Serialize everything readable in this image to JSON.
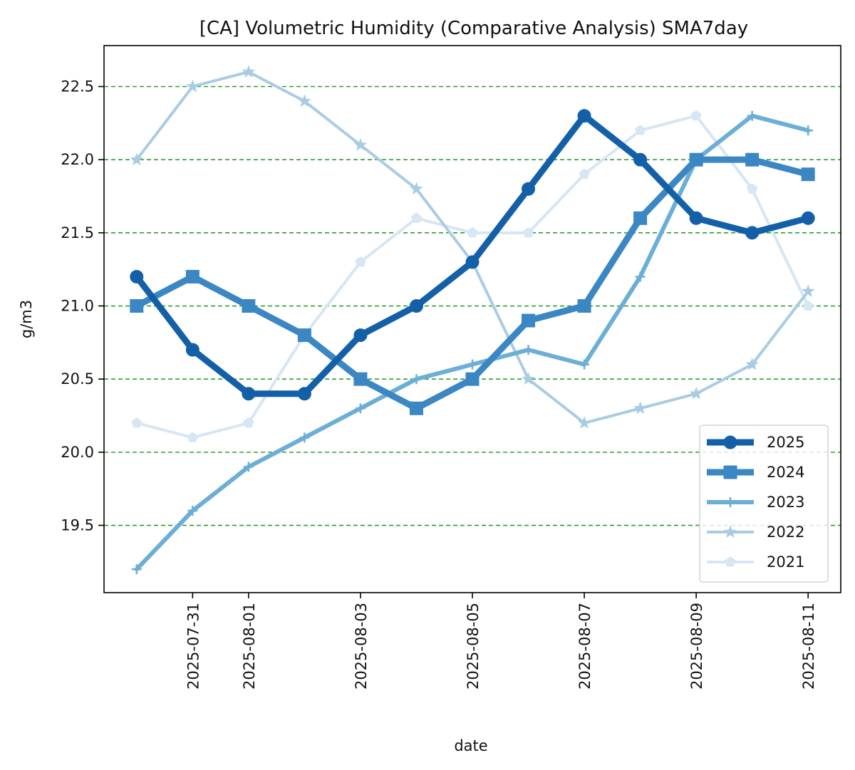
{
  "chart_data": {
    "type": "line",
    "title": "[CA] Volumetric Humidity (Comparative Analysis) SMA7day",
    "xlabel": "date",
    "ylabel": "g/m3",
    "x": [
      "2025-07-30",
      "2025-07-31",
      "2025-08-01",
      "2025-08-02",
      "2025-08-03",
      "2025-08-04",
      "2025-08-05",
      "2025-08-06",
      "2025-08-07",
      "2025-08-08",
      "2025-08-09",
      "2025-08-10",
      "2025-08-11"
    ],
    "x_ticks": [
      "2025-07-31",
      "2025-08-01",
      "2025-08-03",
      "2025-08-05",
      "2025-08-07",
      "2025-08-09",
      "2025-08-11"
    ],
    "y_ticks": [
      19.5,
      20.0,
      20.5,
      21.0,
      21.5,
      22.0,
      22.5
    ],
    "y_tick_labels": [
      "19.5",
      "20.0",
      "20.5",
      "21.0",
      "21.5",
      "22.0",
      "22.5"
    ],
    "ylim": [
      19.04,
      22.78
    ],
    "xlim": [
      "2025-07-29T10:00",
      "2025-08-11T14:00"
    ],
    "grid": {
      "axis": "y",
      "style": "dashed",
      "color": "#2ca02c"
    },
    "legend_position": "lower right",
    "series": [
      {
        "name": "2025",
        "color": "#1460a8",
        "marker": "circle",
        "line_width": "thick",
        "values": [
          21.2,
          20.7,
          20.4,
          20.4,
          20.8,
          21.0,
          21.3,
          21.8,
          22.3,
          22.0,
          21.6,
          21.5,
          21.6
        ]
      },
      {
        "name": "2024",
        "color": "#3a87c3",
        "marker": "square",
        "line_width": "thick",
        "values": [
          21.0,
          21.2,
          21.0,
          20.8,
          20.5,
          20.3,
          20.5,
          20.9,
          21.0,
          21.6,
          22.0,
          22.0,
          21.9
        ]
      },
      {
        "name": "2023",
        "color": "#6baed6",
        "marker": "plus",
        "line_width": "medium",
        "values": [
          19.2,
          19.6,
          19.9,
          20.1,
          20.3,
          20.5,
          20.6,
          20.7,
          20.6,
          21.2,
          22.0,
          22.3,
          22.2
        ]
      },
      {
        "name": "2022",
        "color": "#a9cce3",
        "marker": "star",
        "line_width": "thin",
        "values": [
          22.0,
          22.5,
          22.6,
          22.4,
          22.1,
          21.8,
          21.3,
          20.5,
          20.2,
          20.3,
          20.4,
          20.6,
          21.1
        ]
      },
      {
        "name": "2021",
        "color": "#d6e6f4",
        "marker": "pentagon",
        "line_width": "thin",
        "values": [
          20.2,
          20.1,
          20.2,
          20.8,
          21.3,
          21.6,
          21.5,
          21.5,
          21.9,
          22.2,
          22.3,
          21.8,
          21.0
        ]
      }
    ]
  }
}
